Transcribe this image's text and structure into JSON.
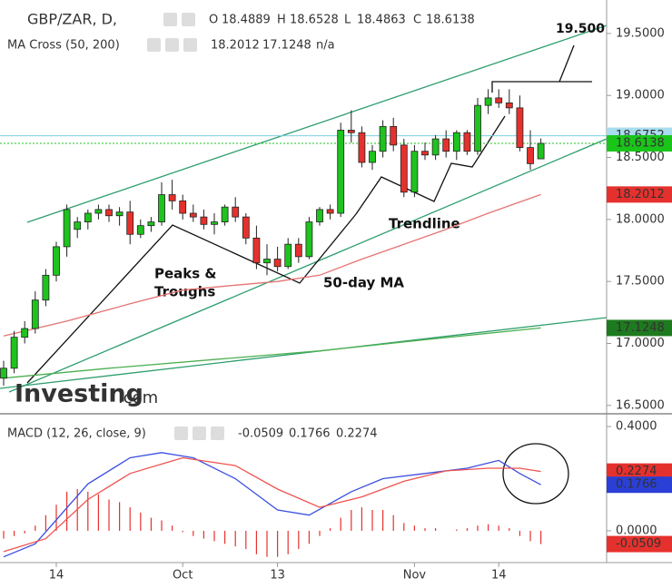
{
  "chart_data": [
    {
      "type": "candlestick",
      "title": "GBP/ZAR, D,",
      "fields": [
        {
          "label": "O",
          "value": 18.4889
        },
        {
          "label": "H",
          "value": 18.6528
        },
        {
          "label": "L",
          "value": 18.4863
        },
        {
          "label": "C",
          "value": 18.6138
        }
      ],
      "x": [
        0,
        1,
        2,
        3,
        4,
        5,
        6,
        7,
        8,
        9,
        10,
        11,
        12,
        13,
        14,
        15,
        16,
        17,
        18,
        19,
        20,
        21,
        22,
        23,
        24,
        25,
        26,
        27,
        28,
        29,
        30,
        31,
        32,
        33,
        34,
        35,
        36,
        37,
        38,
        39,
        40,
        41,
        42,
        43,
        44,
        45,
        46,
        47,
        48,
        49,
        50,
        51
      ],
      "open": [
        16.72,
        16.8,
        17.05,
        17.12,
        17.35,
        17.55,
        17.78,
        17.92,
        17.98,
        18.05,
        18.08,
        18.03,
        18.06,
        17.88,
        17.95,
        17.98,
        18.2,
        18.15,
        18.05,
        18.02,
        17.96,
        17.98,
        18.1,
        18.02,
        17.85,
        17.65,
        17.68,
        17.62,
        17.8,
        17.7,
        17.98,
        18.08,
        18.05,
        18.72,
        18.7,
        18.46,
        18.55,
        18.75,
        18.6,
        18.22,
        18.55,
        18.52,
        18.65,
        18.55,
        18.7,
        18.55,
        18.92,
        18.98,
        18.94,
        18.9,
        18.58,
        18.4889
      ],
      "high": [
        16.86,
        17.1,
        17.18,
        17.42,
        17.6,
        17.82,
        18.12,
        18.02,
        18.08,
        18.12,
        18.12,
        18.1,
        18.15,
        18.0,
        18.02,
        18.3,
        18.32,
        18.2,
        18.12,
        18.08,
        18.05,
        18.12,
        18.18,
        18.05,
        17.95,
        17.8,
        17.78,
        17.85,
        17.85,
        18.02,
        18.1,
        18.12,
        18.78,
        18.88,
        18.75,
        18.6,
        18.8,
        18.82,
        18.65,
        18.6,
        18.62,
        18.68,
        18.72,
        18.72,
        18.72,
        18.98,
        19.05,
        19.05,
        19.05,
        19.0,
        18.72,
        18.6528
      ],
      "low": [
        16.66,
        16.76,
        17.0,
        17.08,
        17.3,
        17.5,
        17.7,
        17.85,
        17.92,
        18.0,
        17.98,
        17.95,
        17.8,
        17.85,
        17.9,
        17.95,
        18.08,
        18.0,
        17.98,
        17.92,
        17.88,
        17.95,
        17.98,
        17.8,
        17.6,
        17.55,
        17.58,
        17.6,
        17.65,
        17.68,
        17.95,
        18.0,
        18.02,
        18.62,
        18.42,
        18.4,
        18.5,
        18.55,
        18.18,
        18.18,
        18.48,
        18.48,
        18.5,
        18.48,
        18.52,
        18.52,
        18.85,
        18.9,
        18.85,
        18.55,
        18.4,
        18.4863
      ],
      "close": [
        16.8,
        17.05,
        17.12,
        17.35,
        17.55,
        17.78,
        18.08,
        17.98,
        18.05,
        18.08,
        18.03,
        18.06,
        17.88,
        17.95,
        17.98,
        18.2,
        18.15,
        18.05,
        18.02,
        17.96,
        17.98,
        18.1,
        18.02,
        17.85,
        17.65,
        17.68,
        17.62,
        17.8,
        17.7,
        17.98,
        18.08,
        18.05,
        18.72,
        18.7,
        18.46,
        18.55,
        18.75,
        18.6,
        18.22,
        18.55,
        18.52,
        18.65,
        18.55,
        18.7,
        18.55,
        18.92,
        18.98,
        18.94,
        18.9,
        18.58,
        18.45,
        18.6138
      ],
      "up_color": "#1ec31e",
      "down_color": "#e5312d",
      "indicator": {
        "name": "MA Cross (50, 200)",
        "readouts": [
          {
            "value": 18.2012,
            "color": "#d32f2f"
          },
          {
            "value": 17.1248,
            "color": "#2e8b2e"
          },
          {
            "value": "n/a",
            "color": "#1f3a93"
          }
        ],
        "series": [
          {
            "color": "#e57373",
            "x": [
              0,
              6,
              12,
              17,
              22,
              26,
              30,
              34,
              38,
              42,
              46,
              51
            ],
            "values": [
              17.06,
              17.18,
              17.32,
              17.43,
              17.47,
              17.5,
              17.55,
              17.68,
              17.8,
              17.92,
              18.05,
              18.2012
            ]
          },
          {
            "color": "#4caf50",
            "x": [
              0,
              10,
              20,
              30,
              40,
              51
            ],
            "values": [
              16.72,
              16.8,
              16.87,
              16.94,
              17.03,
              17.1248
            ]
          }
        ]
      },
      "price_labels": [
        {
          "value": 18.6752,
          "bg": "#a8dcef",
          "fg": "#222",
          "line": "#7ccfe0"
        },
        {
          "value": 18.6138,
          "bg": "#19c519",
          "fg": "#111",
          "line": "#19c519"
        },
        {
          "value": 18.2012,
          "bg": "#e5312d",
          "fg": "#fff"
        },
        {
          "value": 17.1248,
          "bg": "#1e7a1e",
          "fg": "#fff"
        }
      ],
      "xlim": [
        -0.345,
        57.24
      ],
      "xticks": [
        {
          "value": 5,
          "label": "14"
        },
        {
          "value": 17,
          "label": "Oct"
        },
        {
          "value": 26,
          "label": "13"
        },
        {
          "value": 39,
          "label": "Nov"
        },
        {
          "value": 47,
          "label": "14"
        }
      ],
      "ylim": [
        16.44,
        19.77
      ],
      "yticks": [
        {
          "value": 16.5,
          "label": "16.5000"
        },
        {
          "value": 17,
          "label": "17.0000"
        },
        {
          "value": 17.5,
          "label": "17.5000"
        },
        {
          "value": 18,
          "label": "18.0000"
        },
        {
          "value": 18.5,
          "label": "18.5000"
        },
        {
          "value": 19,
          "label": "19.0000"
        },
        {
          "value": 19.5,
          "label": "19.5000"
        }
      ],
      "grid": false,
      "annotations": [
        "19.500",
        "Peaks &",
        "Troughs",
        "50-day MA",
        "Trendline"
      ],
      "watermark": [
        "Investing",
        ".com"
      ]
    },
    {
      "type": "macd",
      "title": "MACD (12, 26, close, 9)",
      "readouts": [
        {
          "value": -0.0509,
          "color": "#e5312d"
        },
        {
          "value": 0.1766,
          "color": "#2a3fd6"
        },
        {
          "value": 0.2274,
          "color": "#e5312d"
        }
      ],
      "x": [
        0,
        1,
        2,
        3,
        4,
        5,
        6,
        7,
        8,
        9,
        10,
        11,
        12,
        13,
        14,
        15,
        16,
        17,
        18,
        19,
        20,
        21,
        22,
        23,
        24,
        25,
        26,
        27,
        28,
        29,
        30,
        31,
        32,
        33,
        34,
        35,
        36,
        37,
        38,
        39,
        40,
        41,
        42,
        43,
        44,
        45,
        46,
        47,
        48,
        49,
        50,
        51
      ],
      "histogram": [
        -0.03,
        -0.02,
        -0.01,
        0.02,
        0.06,
        0.1,
        0.15,
        0.16,
        0.15,
        0.14,
        0.12,
        0.11,
        0.09,
        0.07,
        0.05,
        0.04,
        0.02,
        -0.005,
        -0.02,
        -0.03,
        -0.04,
        -0.05,
        -0.06,
        -0.07,
        -0.09,
        -0.1,
        -0.1,
        -0.09,
        -0.07,
        -0.05,
        -0.02,
        0.01,
        0.05,
        0.08,
        0.09,
        0.08,
        0.08,
        0.06,
        0.03,
        0.02,
        0.01,
        0.01,
        0.0,
        0.005,
        0.01,
        0.02,
        0.025,
        0.02,
        0.01,
        -0.02,
        -0.04,
        -0.0509
      ],
      "histogram_color": "#e5312d",
      "series": [
        {
          "color": "#3b4fe0",
          "x": [
            0,
            3,
            8,
            12,
            15,
            18,
            22,
            26,
            29,
            33,
            36,
            40,
            44,
            47,
            49,
            51
          ],
          "values": [
            -0.1,
            -0.05,
            0.18,
            0.28,
            0.3,
            0.28,
            0.2,
            0.08,
            0.06,
            0.15,
            0.2,
            0.22,
            0.24,
            0.27,
            0.22,
            0.1766
          ]
        },
        {
          "color": "#ef5350",
          "x": [
            0,
            4,
            8,
            12,
            17,
            22,
            26,
            30,
            34,
            38,
            42,
            46,
            49,
            51
          ],
          "values": [
            -0.08,
            -0.03,
            0.12,
            0.22,
            0.28,
            0.25,
            0.16,
            0.09,
            0.13,
            0.19,
            0.23,
            0.24,
            0.24,
            0.2274
          ]
        }
      ],
      "price_labels": [
        {
          "value": 0.2274,
          "bg": "#e5312d",
          "fg": "#fff"
        },
        {
          "value": 0.1766,
          "bg": "#2a3fd6",
          "fg": "#fff"
        },
        {
          "value": -0.0509,
          "bg": "#e5312d",
          "fg": "#fff"
        }
      ],
      "ylim": [
        -0.122,
        0.442
      ],
      "yticks": [
        {
          "value": 0,
          "label": "0.0000"
        },
        {
          "value": 0.4,
          "label": "0.4000"
        }
      ]
    }
  ]
}
